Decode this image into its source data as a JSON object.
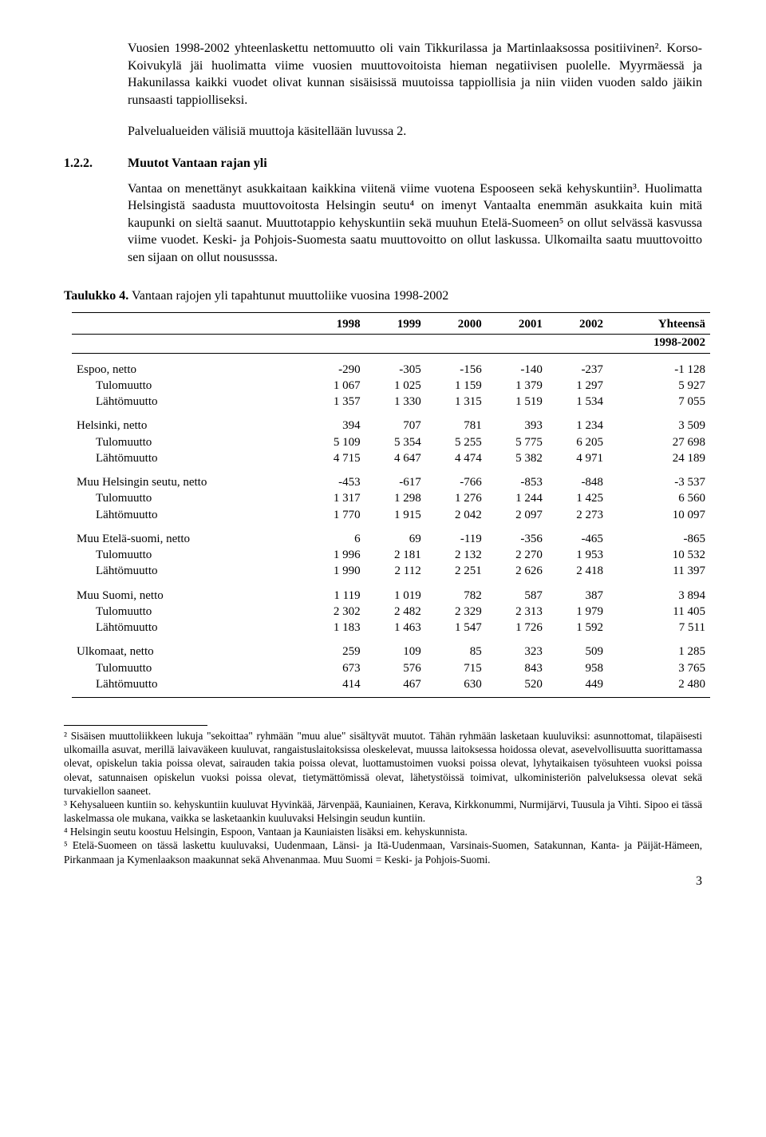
{
  "intro": {
    "p1": "Vuosien 1998-2002 yhteenlaskettu nettomuutto oli vain Tikkurilassa ja Martinlaaksossa positiivinen². Korso-Koivukylä jäi huolimatta viime vuosien muuttovoitoista hieman negatiivisen puolelle. Myyrmäessä ja Hakunilassa kaikki vuodet olivat kunnan sisäisissä muutoissa tappiollisia ja niin viiden vuoden saldo jäikin runsaasti tappiolliseksi.",
    "p2": "Palvelualueiden välisiä muuttoja käsitellään luvussa 2."
  },
  "section": {
    "num": "1.2.2.",
    "title": "Muutot Vantaan rajan yli",
    "body": "Vantaa on menettänyt asukkaitaan kaikkina viitenä viime vuotena Espooseen sekä kehyskuntiin³. Huolimatta Helsingistä saadusta muuttovoitosta Helsingin seutu⁴ on imenyt Vantaalta enemmän asukkaita kuin mitä kaupunki on sieltä saanut. Muuttotappio kehyskuntiin sekä muuhun Etelä-Suomeen⁵ on ollut selvässä kasvussa viime vuodet. Keski- ja Pohjois-Suomesta saatu muuttovoitto on ollut laskussa. Ulkomailta saatu muuttovoitto sen sijaan on ollut noususssa."
  },
  "table_caption_b": "Taulukko 4.",
  "table_caption": " Vantaan rajojen yli tapahtunut muuttoliike vuosina 1998-2002",
  "table": {
    "head": {
      "c1": "1998",
      "c2": "1999",
      "c3": "2000",
      "c4": "2001",
      "c5": "2002",
      "c6": "Yhteensä",
      "c6b": "1998-2002"
    },
    "groups": [
      {
        "name": "Espoo, netto",
        "net": [
          "-290",
          "-305",
          "-156",
          "-140",
          "-237",
          "-1 128"
        ],
        "in_label": "Tulomuutto",
        "in": [
          "1 067",
          "1 025",
          "1 159",
          "1 379",
          "1 297",
          "5 927"
        ],
        "out_label": "Lähtömuutto",
        "out": [
          "1 357",
          "1 330",
          "1 315",
          "1 519",
          "1 534",
          "7 055"
        ]
      },
      {
        "name": "Helsinki, netto",
        "net": [
          "394",
          "707",
          "781",
          "393",
          "1 234",
          "3 509"
        ],
        "in_label": "Tulomuutto",
        "in": [
          "5 109",
          "5 354",
          "5 255",
          "5 775",
          "6 205",
          "27 698"
        ],
        "out_label": "Lähtömuutto",
        "out": [
          "4 715",
          "4 647",
          "4 474",
          "5 382",
          "4 971",
          "24 189"
        ]
      },
      {
        "name": "Muu Helsingin seutu, netto",
        "net": [
          "-453",
          "-617",
          "-766",
          "-853",
          "-848",
          "-3 537"
        ],
        "in_label": "Tulomuutto",
        "in": [
          "1 317",
          "1 298",
          "1 276",
          "1 244",
          "1 425",
          "6 560"
        ],
        "out_label": "Lähtömuutto",
        "out": [
          "1 770",
          "1 915",
          "2 042",
          "2 097",
          "2 273",
          "10 097"
        ]
      },
      {
        "name": "Muu Etelä-suomi, netto",
        "net": [
          "6",
          "69",
          "-119",
          "-356",
          "-465",
          "-865"
        ],
        "in_label": "Tulomuutto",
        "in": [
          "1 996",
          "2 181",
          "2 132",
          "2 270",
          "1 953",
          "10 532"
        ],
        "out_label": "Lähtömuutto",
        "out": [
          "1 990",
          "2 112",
          "2 251",
          "2 626",
          "2 418",
          "11 397"
        ]
      },
      {
        "name": "Muu Suomi, netto",
        "net": [
          "1 119",
          "1 019",
          "782",
          "587",
          "387",
          "3 894"
        ],
        "in_label": "Tulomuutto",
        "in": [
          "2 302",
          "2 482",
          "2 329",
          "2 313",
          "1 979",
          "11 405"
        ],
        "out_label": "Lähtömuutto",
        "out": [
          "1 183",
          "1 463",
          "1 547",
          "1 726",
          "1 592",
          "7 511"
        ]
      },
      {
        "name": "Ulkomaat, netto",
        "net": [
          "259",
          "109",
          "85",
          "323",
          "509",
          "1 285"
        ],
        "in_label": "Tulomuutto",
        "in": [
          "673",
          "576",
          "715",
          "843",
          "958",
          "3 765"
        ],
        "out_label": "Lähtömuutto",
        "out": [
          "414",
          "467",
          "630",
          "520",
          "449",
          "2 480"
        ]
      }
    ]
  },
  "footnotes": {
    "f2": "² Sisäisen muuttoliikkeen lukuja \"sekoittaa\" ryhmään \"muu alue\" sisältyvät muutot. Tähän ryhmään lasketaan kuuluviksi: asunnottomat, tilapäisesti ulkomailla asuvat, merillä laivaväkeen kuuluvat, rangaistuslaitoksissa oleskelevat, muussa laitoksessa hoidossa olevat, asevelvollisuutta suorittamassa olevat, opiskelun takia poissa olevat, sairauden takia poissa olevat, luottamustoimen vuoksi poissa olevat, lyhytaikaisen työsuhteen vuoksi poissa olevat, satunnaisen opiskelun vuoksi poissa olevat, tietymättömissä olevat, lähetystöissä toimivat, ulkoministeriön palveluksessa olevat sekä turvakiellon saaneet.",
    "f3": "³ Kehysalueen kuntiin so. kehyskuntiin kuuluvat Hyvinkää, Järvenpää, Kauniainen, Kerava, Kirkkonummi, Nurmijärvi, Tuusula ja Vihti. Sipoo ei tässä laskelmassa ole mukana, vaikka se lasketaankin kuuluvaksi Helsingin seudun kuntiin.",
    "f4": "⁴ Helsingin seutu koostuu Helsingin, Espoon, Vantaan ja Kauniaisten lisäksi em. kehyskunnista.",
    "f5": "⁵ Etelä-Suomeen on tässä laskettu kuuluvaksi, Uudenmaan, Länsi- ja Itä-Uudenmaan, Varsinais-Suomen, Satakunnan, Kanta- ja Päijät-Hämeen, Pirkanmaan ja Kymenlaakson maakunnat sekä Ahvenanmaa. Muu Suomi = Keski- ja Pohjois-Suomi."
  },
  "pagenum": "3"
}
